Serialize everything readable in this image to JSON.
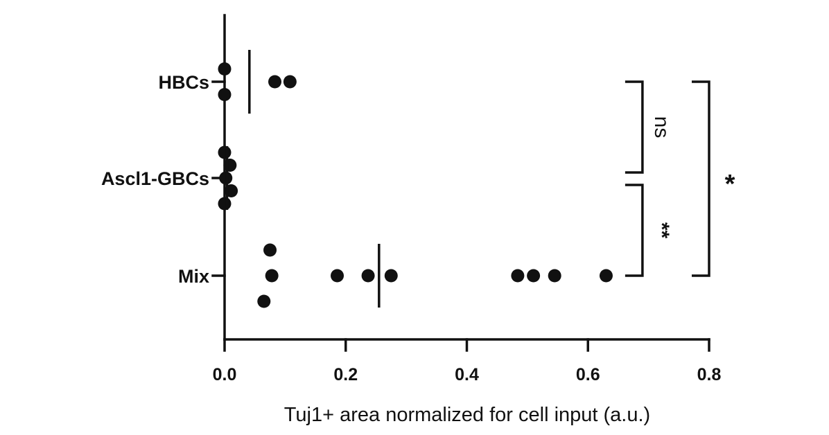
{
  "chart_data": {
    "type": "scatter",
    "orientation": "horizontal",
    "xlabel": "Tuj1+ area normalized for cell input  (a.u.)",
    "ylabel": "",
    "xlim": [
      0,
      0.8
    ],
    "xticks": [
      "0.0",
      "0.2",
      "0.4",
      "0.6",
      "0.8"
    ],
    "tick_values": [
      0,
      0.2,
      0.4,
      0.6,
      0.8
    ],
    "categories": [
      "HBCs",
      "Ascl1-GBCs",
      "Mix"
    ],
    "series": [
      {
        "name": "HBCs",
        "points": [
          [
            0.0,
            0.5
          ],
          [
            0.0,
            -0.5
          ],
          [
            0.083,
            0.0
          ],
          [
            0.108,
            0.0
          ]
        ],
        "mean": 0.041
      },
      {
        "name": "Ascl1-GBCs",
        "points": [
          [
            0.0,
            1.0
          ],
          [
            0.009,
            0.5
          ],
          [
            0.002,
            0.0
          ],
          [
            0.011,
            -0.5
          ],
          [
            0.0,
            -1.0
          ]
        ],
        "mean": 0.004
      },
      {
        "name": "Mix",
        "points": [
          [
            0.075,
            1.0
          ],
          [
            0.078,
            0.0
          ],
          [
            0.065,
            -1.0
          ],
          [
            0.186,
            0.0
          ],
          [
            0.237,
            0.0
          ],
          [
            0.275,
            0.0
          ],
          [
            0.484,
            0.0
          ],
          [
            0.51,
            0.0
          ],
          [
            0.545,
            0.0
          ],
          [
            0.63,
            0.0
          ]
        ],
        "mean": 0.255
      }
    ],
    "comparisons": [
      {
        "from": "HBCs",
        "to": "Ascl1-GBCs",
        "label": "ns",
        "x": 0.69,
        "rotated": true
      },
      {
        "from": "Ascl1-GBCs",
        "to": "Mix",
        "label": "**",
        "x": 0.69,
        "rotated": true
      },
      {
        "from": "HBCs",
        "to": "Mix",
        "label": "*",
        "x": 0.8,
        "rotated": false
      }
    ],
    "grid": false,
    "legend": "none"
  }
}
